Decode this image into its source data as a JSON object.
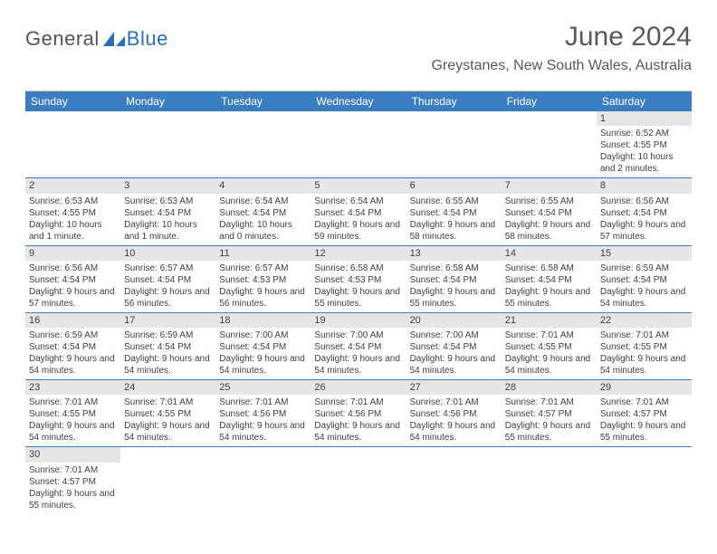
{
  "logo": {
    "general": "General",
    "blue": "Blue"
  },
  "title": "June 2024",
  "location": "Greystanes, New South Wales, Australia",
  "colors": {
    "header_blue": "#3a7ec1",
    "daynum_bg": "#e6e6e6",
    "text": "#404040",
    "title_text": "#595959"
  },
  "weekdays": [
    "Sunday",
    "Monday",
    "Tuesday",
    "Wednesday",
    "Thursday",
    "Friday",
    "Saturday"
  ],
  "weeks": [
    [
      {
        "n": "",
        "sr": "",
        "ss": "",
        "dl": ""
      },
      {
        "n": "",
        "sr": "",
        "ss": "",
        "dl": ""
      },
      {
        "n": "",
        "sr": "",
        "ss": "",
        "dl": ""
      },
      {
        "n": "",
        "sr": "",
        "ss": "",
        "dl": ""
      },
      {
        "n": "",
        "sr": "",
        "ss": "",
        "dl": ""
      },
      {
        "n": "",
        "sr": "",
        "ss": "",
        "dl": ""
      },
      {
        "n": "1",
        "sr": "Sunrise: 6:52 AM",
        "ss": "Sunset: 4:55 PM",
        "dl": "Daylight: 10 hours and 2 minutes."
      }
    ],
    [
      {
        "n": "2",
        "sr": "Sunrise: 6:53 AM",
        "ss": "Sunset: 4:55 PM",
        "dl": "Daylight: 10 hours and 1 minute."
      },
      {
        "n": "3",
        "sr": "Sunrise: 6:53 AM",
        "ss": "Sunset: 4:54 PM",
        "dl": "Daylight: 10 hours and 1 minute."
      },
      {
        "n": "4",
        "sr": "Sunrise: 6:54 AM",
        "ss": "Sunset: 4:54 PM",
        "dl": "Daylight: 10 hours and 0 minutes."
      },
      {
        "n": "5",
        "sr": "Sunrise: 6:54 AM",
        "ss": "Sunset: 4:54 PM",
        "dl": "Daylight: 9 hours and 59 minutes."
      },
      {
        "n": "6",
        "sr": "Sunrise: 6:55 AM",
        "ss": "Sunset: 4:54 PM",
        "dl": "Daylight: 9 hours and 58 minutes."
      },
      {
        "n": "7",
        "sr": "Sunrise: 6:55 AM",
        "ss": "Sunset: 4:54 PM",
        "dl": "Daylight: 9 hours and 58 minutes."
      },
      {
        "n": "8",
        "sr": "Sunrise: 6:56 AM",
        "ss": "Sunset: 4:54 PM",
        "dl": "Daylight: 9 hours and 57 minutes."
      }
    ],
    [
      {
        "n": "9",
        "sr": "Sunrise: 6:56 AM",
        "ss": "Sunset: 4:54 PM",
        "dl": "Daylight: 9 hours and 57 minutes."
      },
      {
        "n": "10",
        "sr": "Sunrise: 6:57 AM",
        "ss": "Sunset: 4:54 PM",
        "dl": "Daylight: 9 hours and 56 minutes."
      },
      {
        "n": "11",
        "sr": "Sunrise: 6:57 AM",
        "ss": "Sunset: 4:53 PM",
        "dl": "Daylight: 9 hours and 56 minutes."
      },
      {
        "n": "12",
        "sr": "Sunrise: 6:58 AM",
        "ss": "Sunset: 4:53 PM",
        "dl": "Daylight: 9 hours and 55 minutes."
      },
      {
        "n": "13",
        "sr": "Sunrise: 6:58 AM",
        "ss": "Sunset: 4:54 PM",
        "dl": "Daylight: 9 hours and 55 minutes."
      },
      {
        "n": "14",
        "sr": "Sunrise: 6:58 AM",
        "ss": "Sunset: 4:54 PM",
        "dl": "Daylight: 9 hours and 55 minutes."
      },
      {
        "n": "15",
        "sr": "Sunrise: 6:59 AM",
        "ss": "Sunset: 4:54 PM",
        "dl": "Daylight: 9 hours and 54 minutes."
      }
    ],
    [
      {
        "n": "16",
        "sr": "Sunrise: 6:59 AM",
        "ss": "Sunset: 4:54 PM",
        "dl": "Daylight: 9 hours and 54 minutes."
      },
      {
        "n": "17",
        "sr": "Sunrise: 6:59 AM",
        "ss": "Sunset: 4:54 PM",
        "dl": "Daylight: 9 hours and 54 minutes."
      },
      {
        "n": "18",
        "sr": "Sunrise: 7:00 AM",
        "ss": "Sunset: 4:54 PM",
        "dl": "Daylight: 9 hours and 54 minutes."
      },
      {
        "n": "19",
        "sr": "Sunrise: 7:00 AM",
        "ss": "Sunset: 4:54 PM",
        "dl": "Daylight: 9 hours and 54 minutes."
      },
      {
        "n": "20",
        "sr": "Sunrise: 7:00 AM",
        "ss": "Sunset: 4:54 PM",
        "dl": "Daylight: 9 hours and 54 minutes."
      },
      {
        "n": "21",
        "sr": "Sunrise: 7:01 AM",
        "ss": "Sunset: 4:55 PM",
        "dl": "Daylight: 9 hours and 54 minutes."
      },
      {
        "n": "22",
        "sr": "Sunrise: 7:01 AM",
        "ss": "Sunset: 4:55 PM",
        "dl": "Daylight: 9 hours and 54 minutes."
      }
    ],
    [
      {
        "n": "23",
        "sr": "Sunrise: 7:01 AM",
        "ss": "Sunset: 4:55 PM",
        "dl": "Daylight: 9 hours and 54 minutes."
      },
      {
        "n": "24",
        "sr": "Sunrise: 7:01 AM",
        "ss": "Sunset: 4:55 PM",
        "dl": "Daylight: 9 hours and 54 minutes."
      },
      {
        "n": "25",
        "sr": "Sunrise: 7:01 AM",
        "ss": "Sunset: 4:56 PM",
        "dl": "Daylight: 9 hours and 54 minutes."
      },
      {
        "n": "26",
        "sr": "Sunrise: 7:01 AM",
        "ss": "Sunset: 4:56 PM",
        "dl": "Daylight: 9 hours and 54 minutes."
      },
      {
        "n": "27",
        "sr": "Sunrise: 7:01 AM",
        "ss": "Sunset: 4:56 PM",
        "dl": "Daylight: 9 hours and 54 minutes."
      },
      {
        "n": "28",
        "sr": "Sunrise: 7:01 AM",
        "ss": "Sunset: 4:57 PM",
        "dl": "Daylight: 9 hours and 55 minutes."
      },
      {
        "n": "29",
        "sr": "Sunrise: 7:01 AM",
        "ss": "Sunset: 4:57 PM",
        "dl": "Daylight: 9 hours and 55 minutes."
      }
    ],
    [
      {
        "n": "30",
        "sr": "Sunrise: 7:01 AM",
        "ss": "Sunset: 4:57 PM",
        "dl": "Daylight: 9 hours and 55 minutes."
      },
      {
        "n": "",
        "sr": "",
        "ss": "",
        "dl": ""
      },
      {
        "n": "",
        "sr": "",
        "ss": "",
        "dl": ""
      },
      {
        "n": "",
        "sr": "",
        "ss": "",
        "dl": ""
      },
      {
        "n": "",
        "sr": "",
        "ss": "",
        "dl": ""
      },
      {
        "n": "",
        "sr": "",
        "ss": "",
        "dl": ""
      },
      {
        "n": "",
        "sr": "",
        "ss": "",
        "dl": ""
      }
    ]
  ]
}
